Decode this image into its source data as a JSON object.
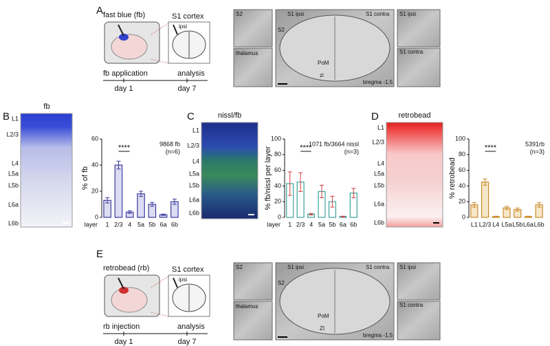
{
  "panel_labels": [
    "A",
    "B",
    "C",
    "D",
    "E"
  ],
  "panel_a": {
    "tracer": "fast blue (fb)",
    "target": "S1 cortex",
    "side": "ipsi",
    "step1": "fb application",
    "step2": "analysis",
    "day1": "day 1",
    "day2": "day 7",
    "images": [
      "S2",
      "S1 ipsi",
      "S1 contra",
      "S2",
      "PoM",
      "zi",
      "thalamus",
      "bregma -1.5",
      "S1 ipsi",
      "S1 contra"
    ]
  },
  "panel_e": {
    "tracer": "retrobead (rb)",
    "target": "S1 cortex",
    "side": "ipsi",
    "step1": "rb injection",
    "step2": "analysis",
    "day1": "day 1",
    "day2": "day 7",
    "images": [
      "S2",
      "S1 ipsi",
      "S1 contra",
      "S2",
      "PoM",
      "ZI",
      "thalamus",
      "bregma -1.5",
      "S1 ipsi",
      "S1 contra"
    ]
  },
  "micrographs": [
    {
      "title": "fb",
      "layers": [
        "L1",
        "L2/3",
        "L4",
        "L5a",
        "L5b",
        "L6a",
        "L6b"
      ]
    },
    {
      "title": "nissl/fb",
      "layers": [
        "L1",
        "L2/3",
        "L4",
        "L5a",
        "L5b",
        "L6a",
        "L6b"
      ]
    },
    {
      "title": "retrobead",
      "layers": [
        "L1",
        "L2/3",
        "L4",
        "L5a",
        "L5b",
        "L6a",
        "L6b"
      ]
    }
  ],
  "chart_data": [
    {
      "type": "bar",
      "y_label": "% of fb",
      "x_label": "layer",
      "categories": [
        "1",
        "2/3",
        "4",
        "5a",
        "5b",
        "6a",
        "6b"
      ],
      "values": [
        13,
        40,
        4,
        18,
        10,
        2,
        12
      ],
      "errors": [
        2,
        3,
        1,
        2,
        1.5,
        0.5,
        2
      ],
      "color": "#3b3b9e",
      "fill": "#dcdcf2",
      "error_color": "#3b3b9e",
      "ylim": [
        0,
        60
      ],
      "yticks": [
        0,
        20,
        40,
        60
      ],
      "significance": "****",
      "annotation": [
        "9868 fb",
        "(n=6)"
      ]
    },
    {
      "type": "bar",
      "y_label": "% fb/nissl per layer",
      "x_label": "layer",
      "categories": [
        "1",
        "2/3",
        "4",
        "5a",
        "5b",
        "6a",
        "6b"
      ],
      "values": [
        43,
        45,
        4,
        33,
        20,
        1,
        31
      ],
      "errors": [
        15,
        12,
        1,
        8,
        7,
        0.5,
        6
      ],
      "color": "#3aa39a",
      "fill": "#ffffff",
      "error_color": "#d23a3a",
      "ylim": [
        0,
        100
      ],
      "yticks": [
        0,
        20,
        40,
        60,
        80,
        100
      ],
      "significance": "****",
      "annotation": [
        "1071 fb/3664 nissl",
        "(n=3)"
      ]
    },
    {
      "type": "bar",
      "y_label": "% retrobead",
      "categories": [
        "L1",
        "L2/3",
        "L4",
        "L5a",
        "L5b",
        "L6a",
        "L6b"
      ],
      "values": [
        16,
        45,
        1,
        12,
        10,
        1,
        16
      ],
      "errors": [
        3,
        4,
        0.5,
        2,
        2,
        0.5,
        3
      ],
      "color": "#c98a2a",
      "fill": "#f6e6c8",
      "error_color": "#c98a2a",
      "ylim": [
        0,
        100
      ],
      "yticks": [
        0,
        20,
        40,
        60,
        80,
        100
      ],
      "significance": "****",
      "annotation": [
        "5391rb",
        "(n=3)"
      ]
    }
  ]
}
